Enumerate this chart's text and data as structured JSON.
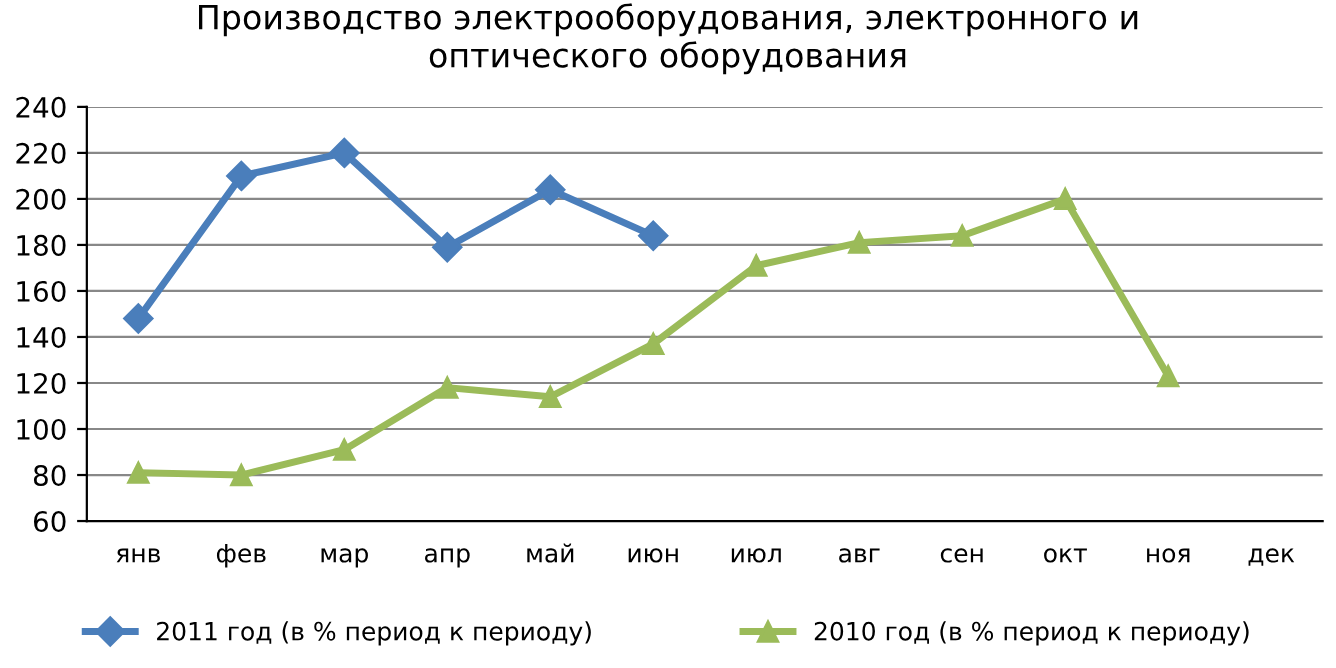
{
  "chart_data": {
    "type": "line",
    "title": "Производство электрооборудования, электронного и\nоптического оборудования",
    "categories": [
      "янв",
      "фев",
      "мар",
      "апр",
      "май",
      "июн",
      "июл",
      "авг",
      "сен",
      "окт",
      "ноя",
      "дек"
    ],
    "series": [
      {
        "name": "2011 год (в % период к периоду)",
        "color": "#4a7ebb",
        "marker": "diamond",
        "values": [
          148,
          210,
          220,
          179,
          204,
          184,
          null,
          null,
          null,
          null,
          null,
          null
        ]
      },
      {
        "name": "2010 год (в % период к периоду)",
        "color": "#9bbb59",
        "marker": "triangle",
        "values": [
          81,
          80,
          91,
          118,
          114,
          137,
          171,
          181,
          184,
          200,
          123,
          null
        ]
      }
    ],
    "ylim": [
      60,
      240
    ],
    "yticks": [
      60,
      80,
      100,
      120,
      140,
      160,
      180,
      200,
      220,
      240
    ],
    "grid": "y",
    "legend": "bottom",
    "line_style": "solid"
  }
}
